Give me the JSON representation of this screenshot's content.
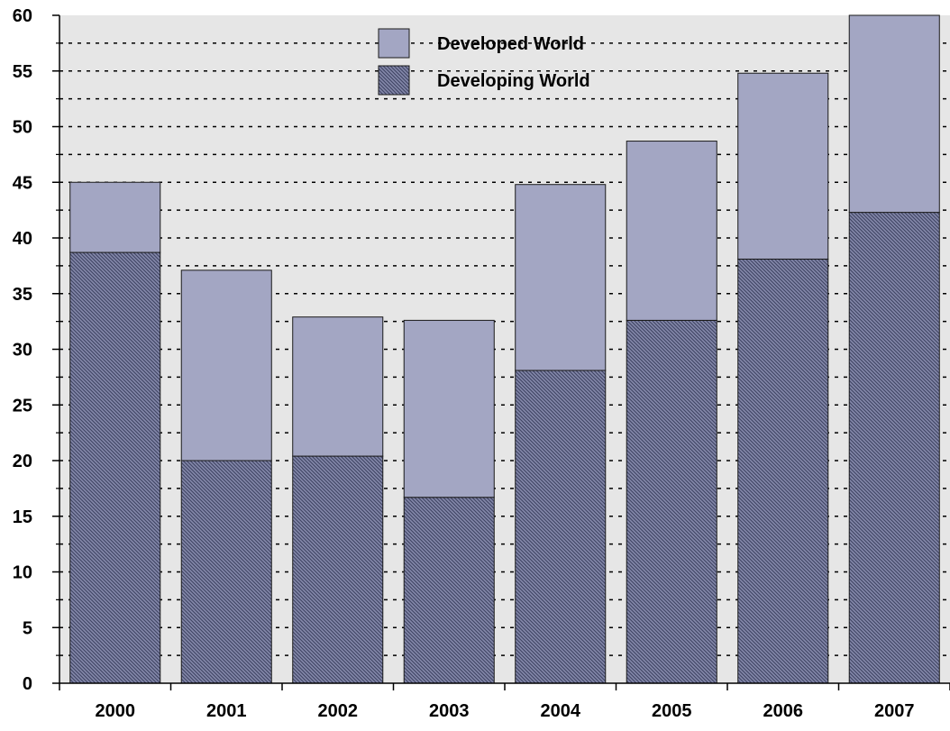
{
  "chart_data": {
    "type": "bar",
    "stacked": true,
    "categories": [
      "2000",
      "2001",
      "2002",
      "2003",
      "2004",
      "2005",
      "2006",
      "2007"
    ],
    "series": [
      {
        "name": "Developing World",
        "values": [
          38.7,
          20.0,
          20.4,
          16.7,
          28.1,
          32.6,
          38.1,
          42.3
        ],
        "color": "#6e7598",
        "pattern": "diagonal-hatch"
      },
      {
        "name": "Developed World",
        "values": [
          6.3,
          17.1,
          12.5,
          15.9,
          16.7,
          16.1,
          16.7,
          17.7
        ],
        "color": "#a3a6c3",
        "pattern": "solid"
      }
    ],
    "ylim": [
      0,
      60
    ],
    "yticks": [
      0,
      5,
      10,
      15,
      20,
      25,
      30,
      35,
      40,
      45,
      50,
      55,
      60
    ],
    "grid": "dotted-horizontal",
    "legend_position": "top-center",
    "plot_background": "#e6e6e6"
  }
}
